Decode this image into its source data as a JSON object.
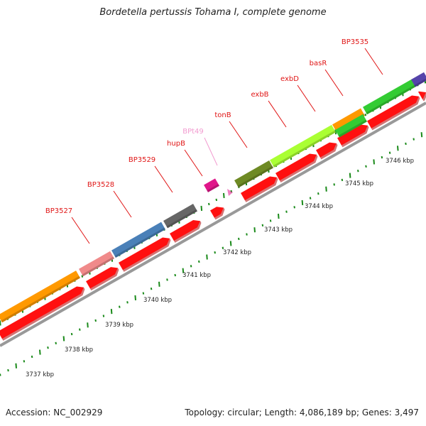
{
  "title": "Bordetella pertussis Tohama I, complete genome",
  "footer": {
    "accession": "Accession: NC_002929",
    "stats": "Topology: circular; Length: 4,086,189 bp; Genes: 3,497"
  },
  "gene_labels": [
    {
      "name": "BP3527",
      "color": "#e01515"
    },
    {
      "name": "BP3528",
      "color": "#e01515"
    },
    {
      "name": "BP3529",
      "color": "#e01515"
    },
    {
      "name": "hupB",
      "color": "#e01515"
    },
    {
      "name": "BPt49",
      "color": "#f29bd0"
    },
    {
      "name": "tonB",
      "color": "#e01515"
    },
    {
      "name": "exbB",
      "color": "#e01515"
    },
    {
      "name": "exbD",
      "color": "#e01515"
    },
    {
      "name": "basR",
      "color": "#e01515"
    },
    {
      "name": "BP3535",
      "color": "#e01515"
    }
  ],
  "kbp_labels": [
    "3737 kbp",
    "3738 kbp",
    "3739 kbp",
    "3740 kbp",
    "3741 kbp",
    "3742 kbp",
    "3743 kbp",
    "3744 kbp",
    "3745 kbp",
    "3746 kbp"
  ],
  "colors": {
    "cds": "#ff1010",
    "backbone": "#999999",
    "ticks": "#1a8a1a",
    "cog_orange": "#ff9900",
    "cog_pink": "#f08a8a",
    "cog_steelblue": "#4a80b8",
    "cog_gray": "#666666",
    "cog_magenta": "#e0168a",
    "cog_olive": "#6e8a24",
    "cog_lime": "#aaff33",
    "cog_green": "#33cc33",
    "cog_purple": "#5544aa"
  }
}
